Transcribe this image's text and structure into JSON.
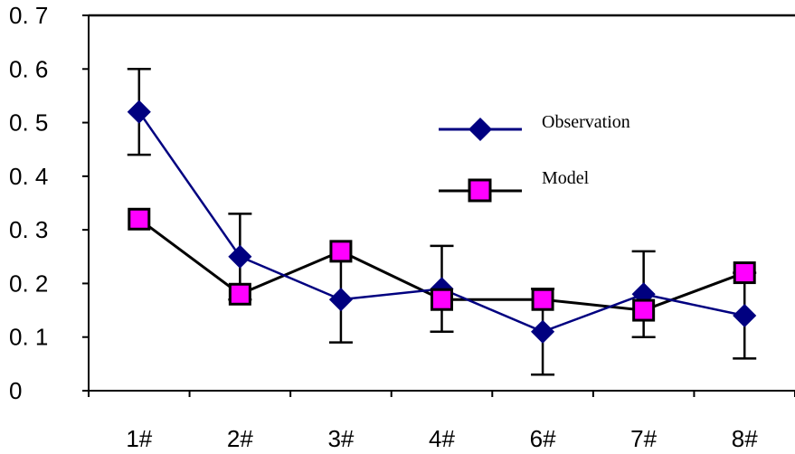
{
  "chart_data": {
    "type": "line",
    "title": "",
    "xlabel": "",
    "ylabel": "",
    "categories": [
      "1#",
      "2#",
      "3#",
      "4#",
      "6#",
      "7#",
      "8#"
    ],
    "ylim": [
      0,
      0.7
    ],
    "yticks": [
      "0",
      "0. 1",
      "0. 2",
      "0. 3",
      "0. 4",
      "0. 5",
      "0. 6",
      "0. 7"
    ],
    "grid": false,
    "legend_position": "right",
    "series": [
      {
        "name": "Observation",
        "marker": "diamond",
        "color": "#000080",
        "marker_color": "#000080",
        "values": [
          0.52,
          0.25,
          0.17,
          0.19,
          0.11,
          0.18,
          0.14
        ],
        "error": [
          0.08,
          0.08,
          0.08,
          0.08,
          0.08,
          0.08,
          0.08
        ]
      },
      {
        "name": "Model",
        "marker": "square",
        "color": "#000000",
        "marker_color": "#ff00ff",
        "values": [
          0.32,
          0.18,
          0.26,
          0.17,
          0.17,
          0.15,
          0.22
        ]
      }
    ]
  }
}
